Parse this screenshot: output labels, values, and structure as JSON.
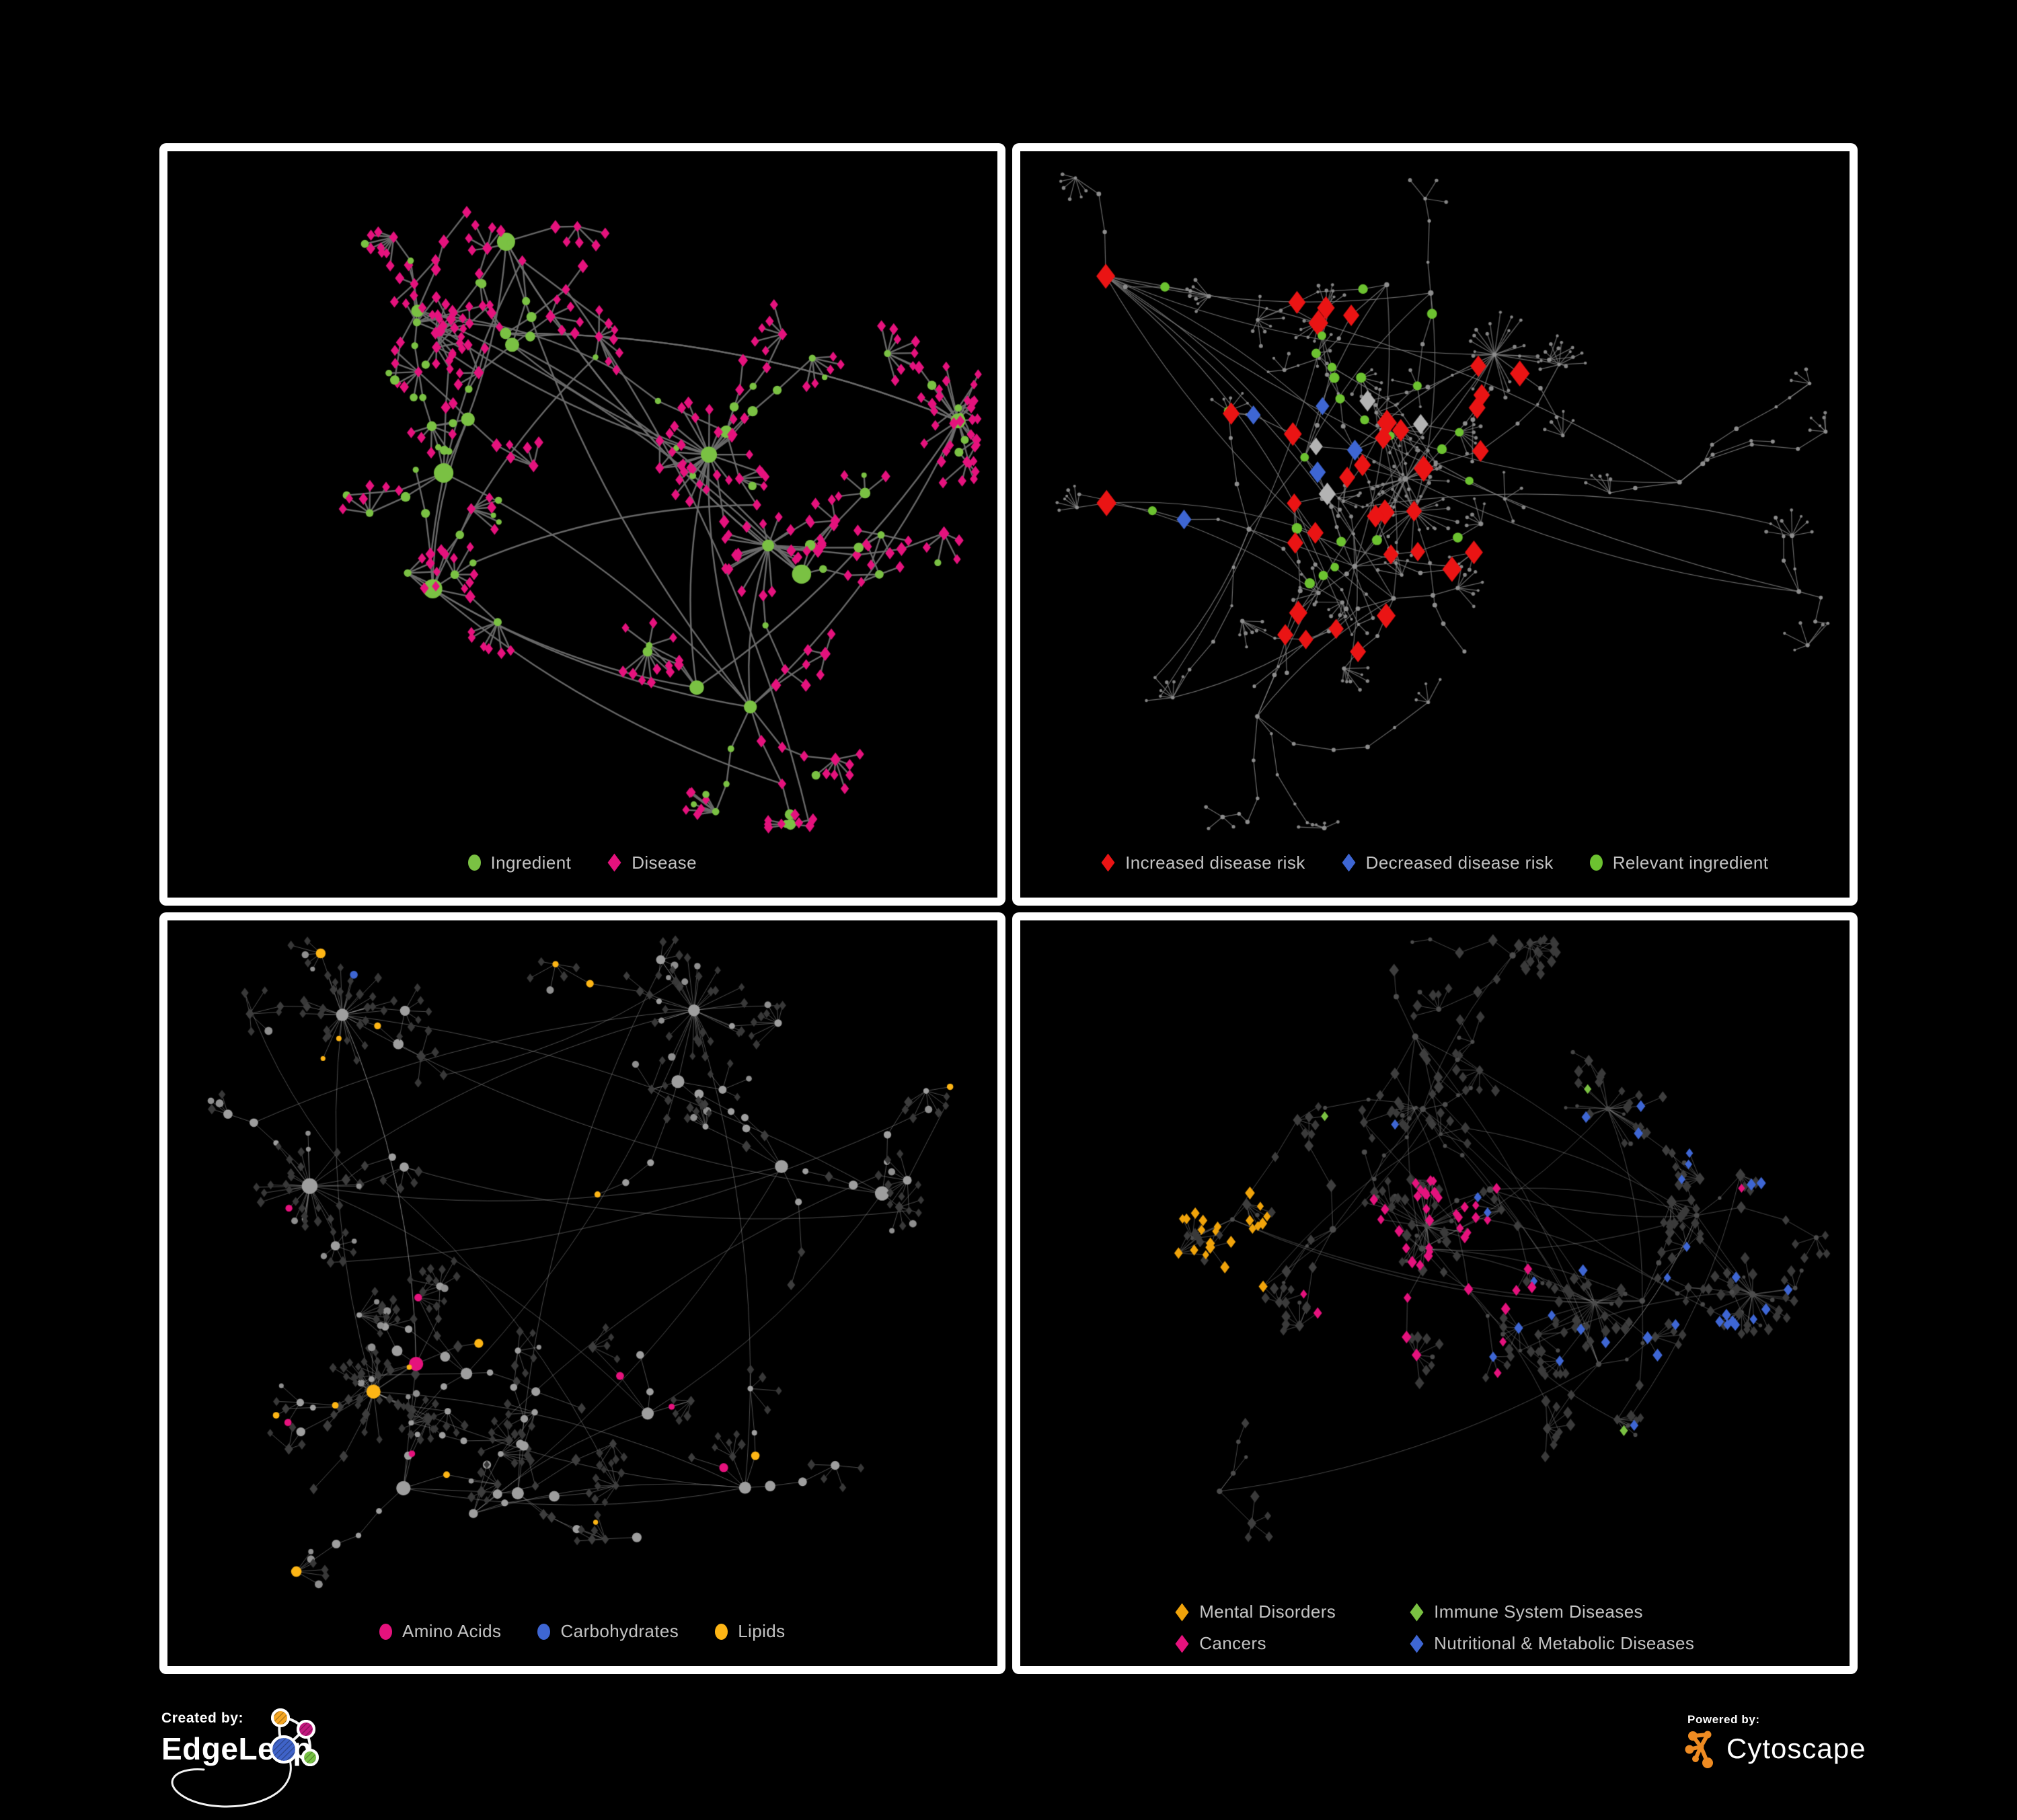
{
  "colors": {
    "background": "#000000",
    "panel_border": "#ffffff",
    "legend_text": "#c3c3c3",
    "ingredient_green": "#7AC143",
    "disease_pink": "#E5127D",
    "risk_red": "#EA1414",
    "risk_blue": "#3E66D3",
    "neutral_gray_diamond": "#B3B3B3",
    "lipid_orange": "#FDB515",
    "mental_orange": "#F0A30A",
    "immune_green": "#7AC142",
    "cytoscape_orange": "#EE8B22"
  },
  "panels": [
    {
      "name": "ingredient-disease",
      "legend": {
        "layout": "row",
        "items": [
          {
            "shape": "circle",
            "color": "#7AC143",
            "label": "Ingredient"
          },
          {
            "shape": "diamond",
            "color": "#E5127D",
            "label": "Disease"
          }
        ]
      },
      "net": {
        "seed": 20240,
        "hubs": 14,
        "spread": 1.0,
        "cross": 10,
        "branches": [
          2,
          5
        ],
        "segs": [
          1,
          4
        ],
        "seglen": [
          32,
          80
        ],
        "fan": {
          "prob": 0.75,
          "count": [
            3,
            9
          ],
          "dist": [
            22,
            48
          ]
        },
        "bursts": {
          "count": 3,
          "leaves": [
            16,
            30
          ],
          "dist": [
            30,
            85
          ]
        },
        "edge": {
          "color": "#6e6e6e",
          "width": 2.4,
          "alpha": 0.95,
          "curve": true
        },
        "base": {
          "hub": {
            "shape": "circle",
            "color": "#7AC143",
            "size": [
              8,
              15
            ]
          },
          "mid": {
            "circleProb": 0.48,
            "circle": {
              "color": "#7AC143",
              "size": [
                4.5,
                8
              ]
            },
            "diamond": {
              "color": "#E5127D",
              "size": [
                6,
                8
              ]
            }
          },
          "leaf": {
            "circleProb": 0.13,
            "circle": {
              "color": "#7AC143",
              "size": [
                4,
                6.5
              ]
            },
            "diamond": {
              "color": "#E5127D",
              "size": [
                5.5,
                7
              ]
            }
          }
        },
        "highlights": []
      }
    },
    {
      "name": "disease-risk",
      "legend": {
        "layout": "row",
        "items": [
          {
            "shape": "diamond",
            "color": "#EA1414",
            "label": "Increased disease risk"
          },
          {
            "shape": "diamond",
            "color": "#3E66D3",
            "label": "Decreased disease risk"
          },
          {
            "shape": "circle",
            "color": "#6CC230",
            "label": "Relevant ingredient"
          }
        ]
      },
      "net": {
        "seed": 771,
        "hubs": 16,
        "spread": 1.05,
        "cross": 12,
        "branches": [
          2,
          5
        ],
        "segs": [
          2,
          5
        ],
        "seglen": [
          28,
          70
        ],
        "fan": {
          "prob": 0.7,
          "count": [
            3,
            8
          ],
          "dist": [
            18,
            40
          ]
        },
        "bursts": {
          "count": 3,
          "leaves": [
            12,
            24
          ],
          "dist": [
            24,
            70
          ]
        },
        "edge": {
          "color": "#7d7d7d",
          "width": 1.2,
          "alpha": 0.85,
          "curve": true
        },
        "base": {
          "hub": {
            "shape": "circle",
            "color": "#8d8d8d",
            "size": [
              2.6,
              4.5
            ]
          },
          "mid": {
            "circleProb": 1,
            "circle": {
              "color": "#8d8d8d",
              "size": [
                2.2,
                3.6
              ]
            },
            "diamond": {
              "color": "#8d8d8d",
              "size": [
                2.2,
                3.6
              ]
            }
          },
          "leaf": {
            "circleProb": 1,
            "circle": {
              "color": "#858585",
              "size": [
                2,
                3
              ]
            },
            "diamond": {
              "color": "#858585",
              "size": [
                2,
                3
              ]
            }
          }
        },
        "highlights": [
          {
            "target": "non-leaf",
            "region": [
              0.06,
              0.12,
              0.62,
              0.72
            ],
            "prob": 0.3,
            "shape": "diamond",
            "color": "#EA1414",
            "size": [
              11,
              15
            ]
          },
          {
            "target": "non-leaf",
            "region": [
              0.06,
              0.18,
              0.55,
              0.62
            ],
            "prob": 0.22,
            "shape": "circle",
            "color": "#6CC230",
            "size": [
              6,
              8
            ]
          },
          {
            "target": "non-leaf",
            "region": [
              0.08,
              0.25,
              0.42,
              0.55
            ],
            "prob": 0.1,
            "shape": "diamond",
            "color": "#3E66D3",
            "size": [
              10,
              13
            ]
          },
          {
            "target": "non-leaf",
            "region": [
              0.12,
              0.25,
              0.55,
              0.6
            ],
            "prob": 0.07,
            "shape": "diamond",
            "color": "#B3B3B3",
            "size": [
              10,
              13
            ]
          },
          {
            "target": "non-leaf",
            "region": [
              0.78,
              0.14,
              0.98,
              0.3
            ],
            "prob": 0.3,
            "shape": "diamond",
            "color": "#3E66D3",
            "size": [
              10,
              12
            ]
          },
          {
            "target": "non-leaf",
            "region": [
              0.58,
              0.72,
              0.88,
              0.95
            ],
            "prob": 0.14,
            "shape": "diamond",
            "color": "#EA1414",
            "size": [
              10,
              13
            ]
          }
        ]
      }
    },
    {
      "name": "nutrients",
      "legend": {
        "layout": "row",
        "items": [
          {
            "shape": "circle",
            "color": "#E5127D",
            "label": "Amino Acids"
          },
          {
            "shape": "circle",
            "color": "#3E66D3",
            "label": "Carbohydrates"
          },
          {
            "shape": "circle",
            "color": "#FDB515",
            "label": "Lipids"
          }
        ]
      },
      "net": {
        "seed": 5150,
        "hubs": 14,
        "spread": 1.0,
        "cross": 10,
        "branches": [
          2,
          5
        ],
        "segs": [
          1,
          4
        ],
        "seglen": [
          30,
          78
        ],
        "fan": {
          "prob": 0.75,
          "count": [
            3,
            9
          ],
          "dist": [
            20,
            46
          ]
        },
        "bursts": {
          "count": 4,
          "leaves": [
            16,
            32
          ],
          "dist": [
            26,
            80
          ]
        },
        "edge": {
          "color": "#9a9a9a",
          "width": 1.0,
          "alpha": 0.5,
          "curve": true
        },
        "base": {
          "hub": {
            "shape": "circle",
            "color": "#9e9e9e",
            "size": [
              6,
              12
            ]
          },
          "mid": {
            "circleProb": 0.5,
            "circle": {
              "color": "#9e9e9e",
              "size": [
                4,
                8
              ]
            },
            "diamond": {
              "color": "#3d3d3d",
              "size": [
                5,
                7
              ]
            }
          },
          "leaf": {
            "circleProb": 0.15,
            "circle": {
              "color": "#8f8f8f",
              "size": [
                3.5,
                6
              ]
            },
            "diamond": {
              "color": "#383838",
              "size": [
                4.5,
                6
              ]
            }
          }
        },
        "highlights": [
          {
            "target": "circle",
            "region": [
              0.18,
              0.04,
              0.55,
              0.42
            ],
            "prob": 0.55,
            "color": "#FDB515"
          },
          {
            "target": "circle",
            "region": [
              0,
              0,
              1,
              1
            ],
            "prob": 0.06,
            "color": "#FDB515"
          },
          {
            "target": "circle",
            "region": [
              0.18,
              0.05,
              0.5,
              0.4
            ],
            "prob": 0.12,
            "color": "#3E66D3"
          },
          {
            "target": "circle",
            "region": [
              0,
              0.35,
              1,
              1
            ],
            "prob": 0.08,
            "color": "#E5127D"
          },
          {
            "target": "circle",
            "region": [
              0,
              0,
              0.15,
              0.55
            ],
            "prob": 0.06,
            "color": "#3E66D3"
          }
        ]
      }
    },
    {
      "name": "disease-classes",
      "legend": {
        "layout": "grid2",
        "items": [
          {
            "shape": "diamond",
            "color": "#F0A30A",
            "label": "Mental Disorders"
          },
          {
            "shape": "diamond",
            "color": "#7AC142",
            "label": "Immune System Diseases"
          },
          {
            "shape": "diamond",
            "color": "#E5127D",
            "label": "Cancers"
          },
          {
            "shape": "diamond",
            "color": "#3E66D3",
            "label": "Nutritional & Metabolic Diseases"
          }
        ]
      },
      "net": {
        "seed": 9093,
        "hubs": 15,
        "spread": 1.02,
        "cross": 12,
        "branches": [
          2,
          5
        ],
        "segs": [
          1,
          4
        ],
        "seglen": [
          26,
          70
        ],
        "fan": {
          "prob": 0.78,
          "count": [
            3,
            9
          ],
          "dist": [
            18,
            42
          ]
        },
        "bursts": {
          "count": 4,
          "leaves": [
            15,
            30
          ],
          "dist": [
            22,
            70
          ]
        },
        "edge": {
          "color": "#9b9b9b",
          "width": 1.0,
          "alpha": 0.45,
          "curve": true
        },
        "base": {
          "hub": {
            "shape": "circle",
            "color": "#4c4c4c",
            "size": [
              3,
              5
            ]
          },
          "mid": {
            "circleProb": 0.28,
            "circle": {
              "color": "#4c4c4c",
              "size": [
                2.5,
                4
              ]
            },
            "diamond": {
              "color": "#3e3e3e",
              "size": [
                5.5,
                7.5
              ]
            }
          },
          "leaf": {
            "circleProb": 0.12,
            "circle": {
              "color": "#474747",
              "size": [
                2.5,
                3.5
              ]
            },
            "diamond": {
              "color": "#3a3a3a",
              "size": [
                5,
                7
              ]
            }
          }
        },
        "highlights": [
          {
            "target": "diamond",
            "region": [
              0.02,
              0.2,
              0.3,
              0.62
            ],
            "prob": 0.65,
            "color": "#F0A30A"
          },
          {
            "target": "diamond",
            "region": [
              0.05,
              0.02,
              0.35,
              0.2
            ],
            "prob": 0.1,
            "color": "#F0A30A"
          },
          {
            "target": "diamond",
            "region": [
              0.33,
              0.34,
              0.62,
              0.68
            ],
            "prob": 0.45,
            "color": "#E5127D"
          },
          {
            "target": "diamond",
            "region": [
              0.55,
              0.05,
              1,
              0.95
            ],
            "prob": 0.17,
            "color": "#3E66D3"
          },
          {
            "target": "diamond",
            "region": [
              0.02,
              0.02,
              0.5,
              0.32
            ],
            "prob": 0.09,
            "color": "#3E66D3"
          },
          {
            "target": "diamond",
            "region": [
              0.82,
              0.22,
              0.99,
              0.42
            ],
            "prob": 0.4,
            "color": "#E5127D"
          },
          {
            "target": "diamond",
            "region": [
              0.1,
              0.15,
              0.9,
              0.85
            ],
            "prob": 0.015,
            "color": "#7AC142"
          }
        ]
      }
    }
  ],
  "footer": {
    "created_by_label": "Created by:",
    "created_by_brand": "EdgeLeap",
    "created_by_icon": "edgeleap-network-icon",
    "powered_by_label": "Powered by:",
    "powered_by_brand": "Cytoscape",
    "powered_by_icon": "cytoscape-network-icon"
  }
}
